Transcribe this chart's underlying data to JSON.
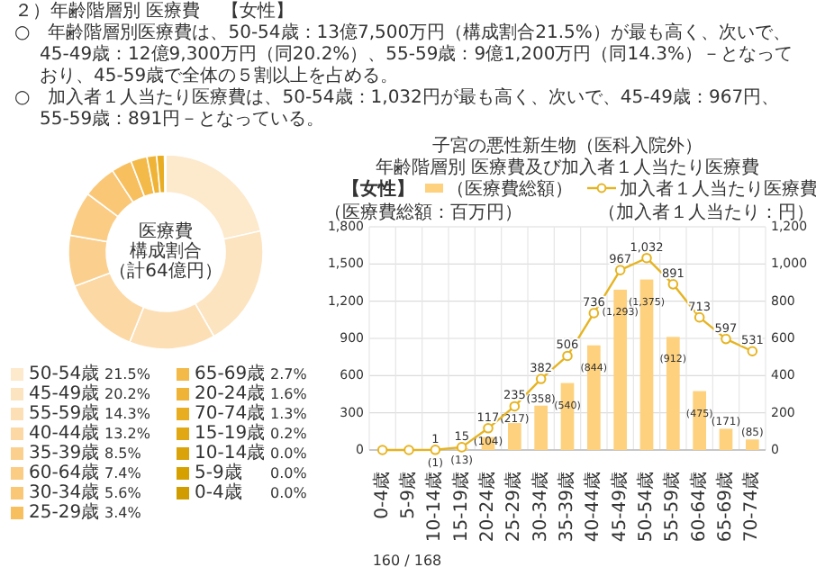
{
  "chart_data": [
    {
      "type": "bar",
      "title": "子宮の悪性新生物（医科入院外）",
      "subtitle": "年齢階層別 医療費及び加入者１人当たり医療費",
      "categories": [
        "0-4歳",
        "5-9歳",
        "10-14歳",
        "15-19歳",
        "20-24歳",
        "25-29歳",
        "30-34歳",
        "35-39歳",
        "40-44歳",
        "45-49歳",
        "50-54歳",
        "55-59歳",
        "60-64歳",
        "65-69歳",
        "70-74歳"
      ],
      "series": [
        {
          "name": "（医療費総額）",
          "type": "bar",
          "color": "#fdd17e",
          "values": [
            0,
            0,
            1,
            13,
            104,
            217,
            358,
            540,
            844,
            1293,
            1375,
            912,
            475,
            171,
            85
          ],
          "value_labels": [
            null,
            null,
            "(1)",
            "(13)",
            "(104)",
            "(217)",
            "(358)",
            "(540)",
            "(844)",
            "(1,293)",
            "(1,375)",
            "(912)",
            "(475)",
            "(171)",
            "(85)"
          ]
        },
        {
          "name": "加入者１人当たり医療費",
          "type": "line",
          "axis": "y2",
          "color": "#e6b422",
          "marker": "circle",
          "values": [
            0,
            0,
            1,
            15,
            117,
            235,
            382,
            506,
            736,
            967,
            1032,
            891,
            713,
            597,
            531
          ],
          "value_labels": [
            null,
            null,
            "1",
            "15",
            "117",
            "235",
            "382",
            "506",
            "736",
            "967",
            "1,032",
            "891",
            "713",
            "597",
            "531"
          ]
        }
      ],
      "ylabel": "（医療費総額：百万円）",
      "y2label": "（加入者１人当たり：円）",
      "ylim": [
        0,
        1800
      ],
      "yticks": [
        0,
        300,
        600,
        900,
        {
          "value": 1200,
          "label": "1,200"
        },
        {
          "value": 1500,
          "label": "1,500"
        },
        {
          "value": 1800,
          "label": "1,800"
        }
      ],
      "y2lim": [
        0,
        1200
      ],
      "y2ticks": [
        0,
        200,
        400,
        600,
        800,
        {
          "value": 1000,
          "label": "1,000"
        },
        {
          "value": 1200,
          "label": "1,200"
        }
      ],
      "grid": true,
      "legend": "top",
      "annotations": [
        "２）年齢階層別 医療費",
        "【女性】",
        "○　年齢階層別医療費は、50-54歳：13億7,500万円（構成割合21.5%）が最も高く、次いで、45-49歳：12億9,300万円（同20.2%）、55-59歳：9億1,200万円（同14.3%）－となっており、45-59歳で全体の５割以上を占める。",
        "○　加入者１人当たり医療費は、50-54歳：1,032円が最も高く、次いで、45-49歳：967円、55-59歳：891円－となっている。",
        "【女性】",
        "160 / 168"
      ]
    },
    {
      "type": "donut",
      "categories": [
        "50-54歳",
        "45-49歳",
        "55-59歳",
        "40-44歳",
        "35-39歳",
        "60-64歳",
        "30-34歳",
        "25-29歳",
        "65-69歳",
        "20-24歳",
        "70-74歳",
        "15-19歳",
        "10-14歳",
        "5-9歳",
        "0-4歳"
      ],
      "values": [
        21.5,
        20.2,
        14.3,
        13.2,
        8.5,
        7.4,
        5.6,
        3.4,
        2.7,
        1.6,
        1.3,
        0.2,
        0.0,
        0.0,
        0.0
      ],
      "value_labels": [
        "21.5%",
        "20.2%",
        "14.3%",
        "13.2%",
        "8.5%",
        "7.4%",
        "5.6%",
        "3.4%",
        "2.7%",
        "1.6%",
        "1.3%",
        "0.2%",
        "0.0%",
        "0.0%",
        "0.0%"
      ],
      "colors": [
        "#fde9cc",
        "#fde4c0",
        "#fddfb6",
        "#fcd8a4",
        "#fbd08e",
        "#fbcc84",
        "#fac776",
        "#f7bf5e",
        "#f3b949",
        "#efb437",
        "#e9ad22",
        "#e2a814",
        "#dba30a",
        "#d6a000",
        "#d19c00"
      ],
      "legend": "bottom",
      "annotations": [
        "医療費",
        "構成割合",
        "（計64億円）"
      ]
    }
  ]
}
